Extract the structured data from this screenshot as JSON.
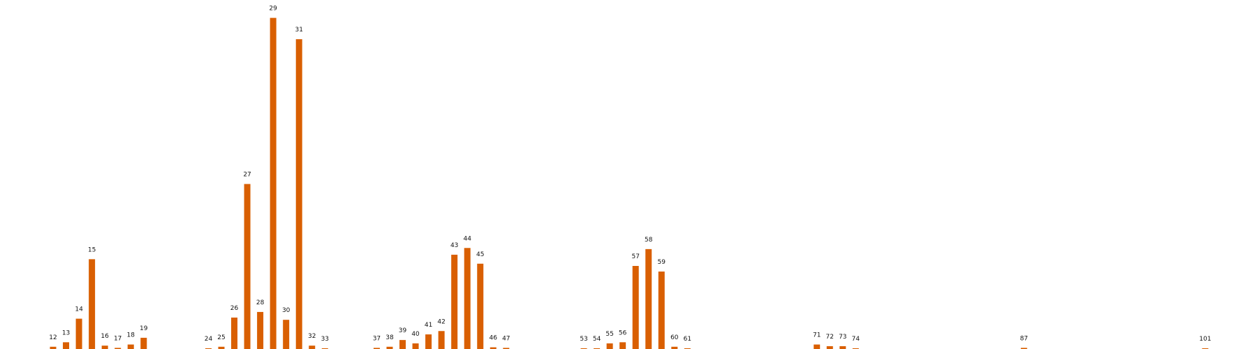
{
  "chart_data": {
    "type": "bar",
    "title": "",
    "xlabel": "",
    "ylabel": "",
    "legend": "none",
    "grid": false,
    "bar_color": "#D95F02",
    "ylim": [
      0,
      29.6
    ],
    "categories": [
      "12",
      "13",
      "14",
      "15",
      "16",
      "17",
      "18",
      "19",
      "24",
      "25",
      "26",
      "27",
      "28",
      "29",
      "30",
      "31",
      "32",
      "33",
      "37",
      "38",
      "39",
      "40",
      "41",
      "42",
      "43",
      "44",
      "45",
      "46",
      "47",
      "53",
      "54",
      "55",
      "56",
      "57",
      "58",
      "59",
      "60",
      "61",
      "71",
      "72",
      "73",
      "74",
      "87",
      "101"
    ],
    "values": [
      0.2,
      0.6,
      2.7,
      8.0,
      0.3,
      0.1,
      0.4,
      1.0,
      0.05,
      0.2,
      2.8,
      14.7,
      3.3,
      29.5,
      2.6,
      27.6,
      0.3,
      0.05,
      0.1,
      0.2,
      0.8,
      0.5,
      1.3,
      1.6,
      8.4,
      9.0,
      7.6,
      0.15,
      0.1,
      0.05,
      0.05,
      0.5,
      0.6,
      7.4,
      8.9,
      6.9,
      0.2,
      0.05,
      0.4,
      0.25,
      0.25,
      0.05,
      0.1,
      0.05
    ],
    "x_positions": [
      12,
      13,
      14,
      15,
      16,
      17,
      18,
      19,
      24,
      25,
      26,
      27,
      28,
      29,
      30,
      31,
      32,
      33,
      37,
      38,
      39,
      40,
      41,
      42,
      43,
      44,
      45,
      46,
      47,
      53,
      54,
      55,
      56,
      57,
      58,
      59,
      60,
      61,
      71,
      72,
      73,
      74,
      87,
      101
    ],
    "xlim": [
      7.9,
      105
    ]
  }
}
